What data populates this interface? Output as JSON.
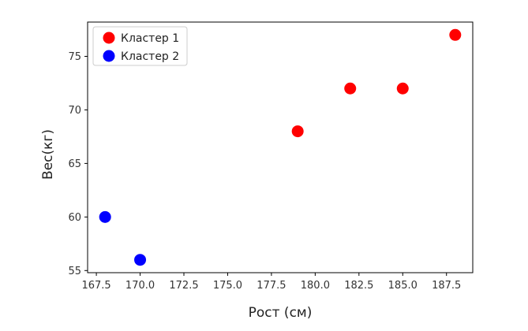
{
  "chart_data": {
    "type": "scatter",
    "title": "",
    "xlabel": "Рост (см)",
    "ylabel": "Вес(кг)",
    "xlim": [
      167.0,
      189.0
    ],
    "ylim": [
      54.8,
      78.2
    ],
    "xticks": [
      167.5,
      170.0,
      172.5,
      175.0,
      177.5,
      180.0,
      182.5,
      185.0,
      187.5
    ],
    "xtick_labels": [
      "167.5",
      "170.0",
      "172.5",
      "175.0",
      "177.5",
      "180.0",
      "182.5",
      "185.0",
      "187.5"
    ],
    "yticks": [
      55,
      60,
      65,
      70,
      75
    ],
    "ytick_labels": [
      "55",
      "60",
      "65",
      "70",
      "75"
    ],
    "grid": false,
    "legend_position": "top-left",
    "series": [
      {
        "name": "Кластер 1",
        "color": "#ff0000",
        "points": [
          {
            "x": 179,
            "y": 68
          },
          {
            "x": 182,
            "y": 72
          },
          {
            "x": 185,
            "y": 72
          },
          {
            "x": 188,
            "y": 77
          }
        ]
      },
      {
        "name": "Кластер 2",
        "color": "#0000ff",
        "points": [
          {
            "x": 168,
            "y": 60
          },
          {
            "x": 170,
            "y": 56
          }
        ]
      }
    ]
  }
}
